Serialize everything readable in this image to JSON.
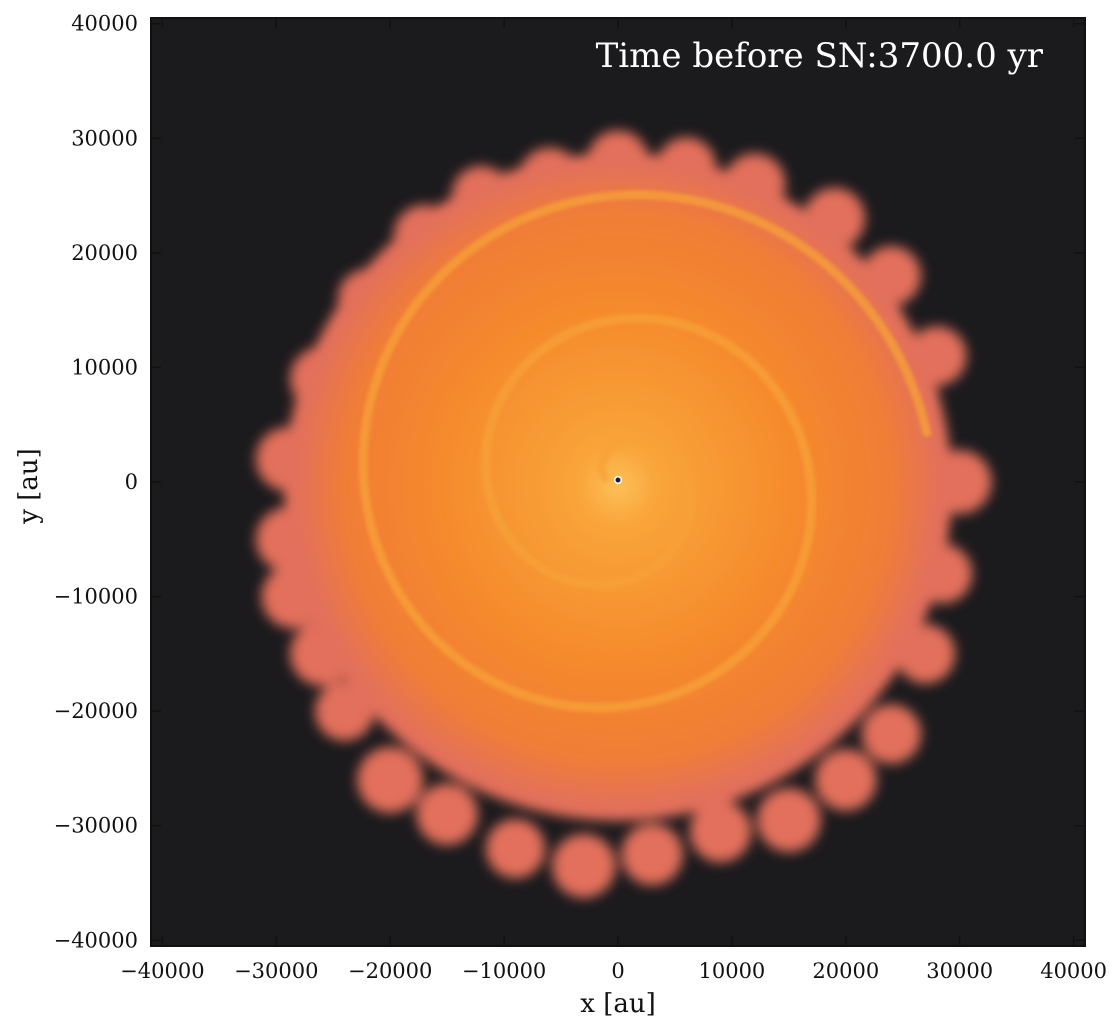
{
  "figure": {
    "annotation": "Time before SN:3700.0 yr",
    "colors": {
      "background": "#1b1a1d",
      "envelope_edge": "#e2705c",
      "envelope_mid": "#f58a2c",
      "envelope_center": "#fbc25a",
      "spiral_arm": "#f7a238"
    }
  },
  "chart_data": {
    "type": "heatmap",
    "title": "",
    "xlabel": "x [au]",
    "ylabel": "y [au]",
    "xlim": [
      -41000,
      41000
    ],
    "ylim": [
      -40500,
      40500
    ],
    "xticks": [
      -40000,
      -30000,
      -20000,
      -10000,
      0,
      10000,
      20000,
      30000,
      40000
    ],
    "xtick_labels": [
      "−40000",
      "−30000",
      "−20000",
      "−10000",
      "0",
      "10000",
      "20000",
      "30000",
      "40000"
    ],
    "yticks": [
      40000,
      30000,
      20000,
      10000,
      0,
      -10000,
      -20000,
      -30000,
      -40000
    ],
    "ytick_labels": [
      "40000",
      "30000",
      "20000",
      "10000",
      "0",
      "−10000",
      "−20000",
      "−30000",
      "−40000"
    ],
    "grid": false,
    "central_source": [
      0,
      0
    ]
  }
}
